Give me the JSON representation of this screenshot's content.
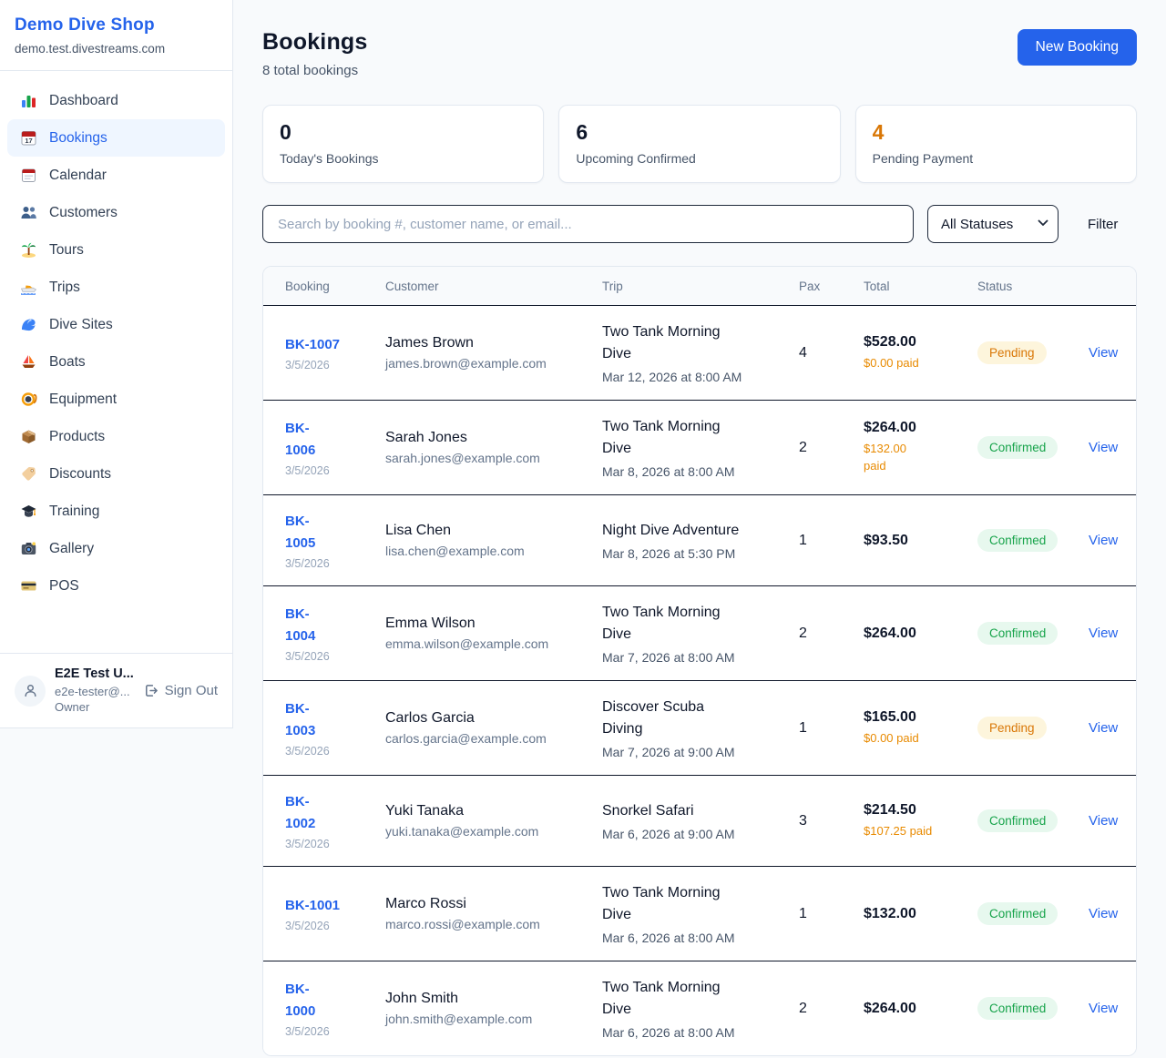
{
  "sidebar": {
    "brand": {
      "name": "Demo Dive Shop",
      "domain": "demo.test.divestreams.com"
    },
    "nav": [
      {
        "label": "Dashboard",
        "icon": "dashboard-icon",
        "active": false
      },
      {
        "label": "Bookings",
        "icon": "bookings-icon",
        "active": true
      },
      {
        "label": "Calendar",
        "icon": "calendar-icon",
        "active": false
      },
      {
        "label": "Customers",
        "icon": "customers-icon",
        "active": false
      },
      {
        "label": "Tours",
        "icon": "tours-icon",
        "active": false
      },
      {
        "label": "Trips",
        "icon": "trips-icon",
        "active": false
      },
      {
        "label": "Dive Sites",
        "icon": "dive-sites-icon",
        "active": false
      },
      {
        "label": "Boats",
        "icon": "boats-icon",
        "active": false
      },
      {
        "label": "Equipment",
        "icon": "equipment-icon",
        "active": false
      },
      {
        "label": "Products",
        "icon": "products-icon",
        "active": false
      },
      {
        "label": "Discounts",
        "icon": "discounts-icon",
        "active": false
      },
      {
        "label": "Training",
        "icon": "training-icon",
        "active": false
      },
      {
        "label": "Gallery",
        "icon": "gallery-icon",
        "active": false
      },
      {
        "label": "POS",
        "icon": "pos-icon",
        "active": false
      }
    ],
    "user": {
      "name": "E2E Test U...",
      "email": "e2e-tester@...",
      "role": "Owner",
      "sign_out_label": "Sign Out"
    }
  },
  "header": {
    "title": "Bookings",
    "subtitle": "8 total bookings",
    "new_booking_label": "New Booking"
  },
  "stats": [
    {
      "value": "0",
      "label": "Today's Bookings",
      "color": "#0f172a"
    },
    {
      "value": "6",
      "label": "Upcoming Confirmed",
      "color": "#0f172a"
    },
    {
      "value": "4",
      "label": "Pending Payment",
      "color": "#d97706"
    }
  ],
  "filters": {
    "search_placeholder": "Search by booking #, customer name, or email...",
    "status_selected": "All Statuses",
    "filter_label": "Filter"
  },
  "table": {
    "columns": [
      "Booking",
      "Customer",
      "Trip",
      "Pax",
      "Total",
      "Status"
    ],
    "view_label": "View",
    "rows": [
      {
        "id": "BK-1007",
        "date": "3/5/2026",
        "customer": "James Brown",
        "email": "james.brown@example.com",
        "trip": "Two Tank Morning\nDive",
        "trip_date": "Mar 12, 2026 at 8:00 AM",
        "pax": "4",
        "total": "$528.00",
        "paid": "$0.00 paid",
        "status": "Pending"
      },
      {
        "id": "BK-\n1006",
        "date": "3/5/2026",
        "customer": "Sarah Jones",
        "email": "sarah.jones@example.com",
        "trip": "Two Tank Morning\nDive",
        "trip_date": "Mar 8, 2026 at 8:00 AM",
        "pax": "2",
        "total": "$264.00",
        "paid": "$132.00\npaid",
        "status": "Confirmed"
      },
      {
        "id": "BK-\n1005",
        "date": "3/5/2026",
        "customer": "Lisa Chen",
        "email": "lisa.chen@example.com",
        "trip": "Night Dive Adventure",
        "trip_date": "Mar 8, 2026 at 5:30 PM",
        "pax": "1",
        "total": "$93.50",
        "paid": "",
        "status": "Confirmed"
      },
      {
        "id": "BK-\n1004",
        "date": "3/5/2026",
        "customer": "Emma Wilson",
        "email": "emma.wilson@example.com",
        "trip": "Two Tank Morning\nDive",
        "trip_date": "Mar 7, 2026 at 8:00 AM",
        "pax": "2",
        "total": "$264.00",
        "paid": "",
        "status": "Confirmed"
      },
      {
        "id": "BK-\n1003",
        "date": "3/5/2026",
        "customer": "Carlos Garcia",
        "email": "carlos.garcia@example.com",
        "trip": "Discover Scuba\nDiving",
        "trip_date": "Mar 7, 2026 at 9:00 AM",
        "pax": "1",
        "total": "$165.00",
        "paid": "$0.00 paid",
        "status": "Pending"
      },
      {
        "id": "BK-\n1002",
        "date": "3/5/2026",
        "customer": "Yuki Tanaka",
        "email": "yuki.tanaka@example.com",
        "trip": "Snorkel Safari",
        "trip_date": "Mar 6, 2026 at 9:00 AM",
        "pax": "3",
        "total": "$214.50",
        "paid": "$107.25 paid",
        "status": "Confirmed"
      },
      {
        "id": "BK-1001",
        "date": "3/5/2026",
        "customer": "Marco Rossi",
        "email": "marco.rossi@example.com",
        "trip": "Two Tank Morning\nDive",
        "trip_date": "Mar 6, 2026 at 8:00 AM",
        "pax": "1",
        "total": "$132.00",
        "paid": "",
        "status": "Confirmed"
      },
      {
        "id": "BK-\n1000",
        "date": "3/5/2026",
        "customer": "John Smith",
        "email": "john.smith@example.com",
        "trip": "Two Tank Morning\nDive",
        "trip_date": "Mar 6, 2026 at 8:00 AM",
        "pax": "2",
        "total": "$264.00",
        "paid": "",
        "status": "Confirmed"
      }
    ]
  },
  "colors": {
    "accent_blue": "#2563eb",
    "pending_text": "#d97706",
    "pending_bg": "#fdf5dc",
    "confirmed_text": "#16a34a",
    "confirmed_bg": "#e7f8ee",
    "paid_orange": "#e88a00",
    "page_bg": "#f8fafc"
  }
}
